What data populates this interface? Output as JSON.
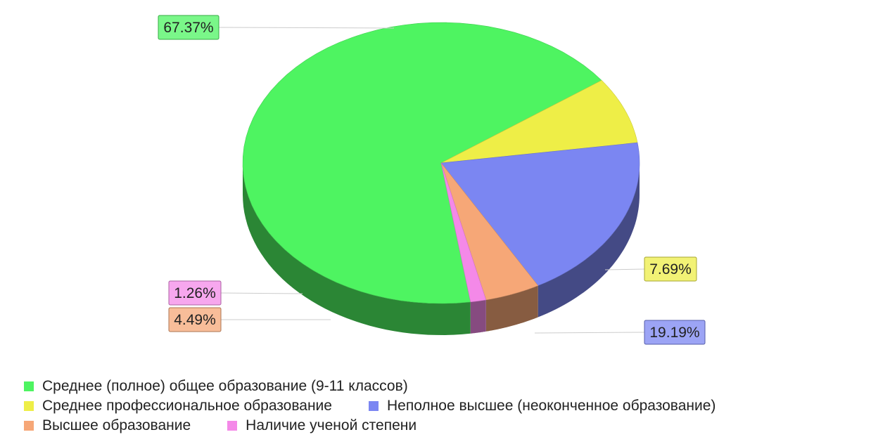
{
  "chart_data": {
    "type": "pie",
    "title": "",
    "three_d": true,
    "legend_position": "bottom-left",
    "series": [
      {
        "name": "Среднее (полное) общее образование (9-11 классов)",
        "value": 67.37,
        "label": "67.37%",
        "color": "#4ef461"
      },
      {
        "name": "Среднее профессиональное образование",
        "value": 7.69,
        "label": "7.69%",
        "color": "#eeee47"
      },
      {
        "name": "Неполное высшее (неоконченное образование)",
        "value": 19.19,
        "label": "19.19%",
        "color": "#7b86f2"
      },
      {
        "name": "Высшее образование",
        "value": 4.49,
        "label": "4.49%",
        "color": "#f6a777"
      },
      {
        "name": "Наличие ученой степени",
        "value": 1.26,
        "label": "1.26%",
        "color": "#f489e8"
      }
    ]
  }
}
